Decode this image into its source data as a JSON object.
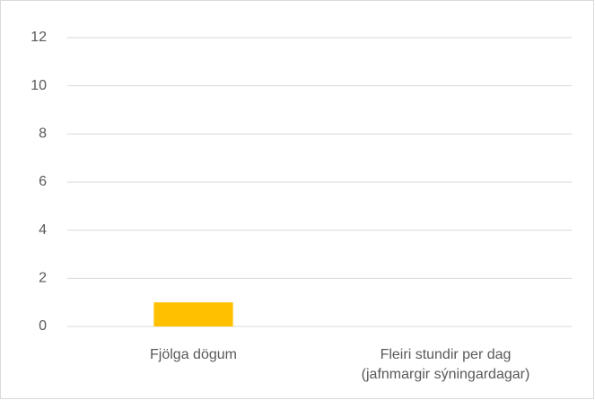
{
  "chart_data": {
    "type": "bar",
    "categories": [
      "Fjölga dögum",
      "Fleiri stundir per dag\n(jafnmargir sýningardagar)"
    ],
    "values": [
      1,
      0
    ],
    "color": "#ffc000",
    "ylim": [
      0,
      12
    ],
    "yticks": [
      0,
      2,
      4,
      6,
      8,
      10,
      12
    ],
    "grid": true
  }
}
